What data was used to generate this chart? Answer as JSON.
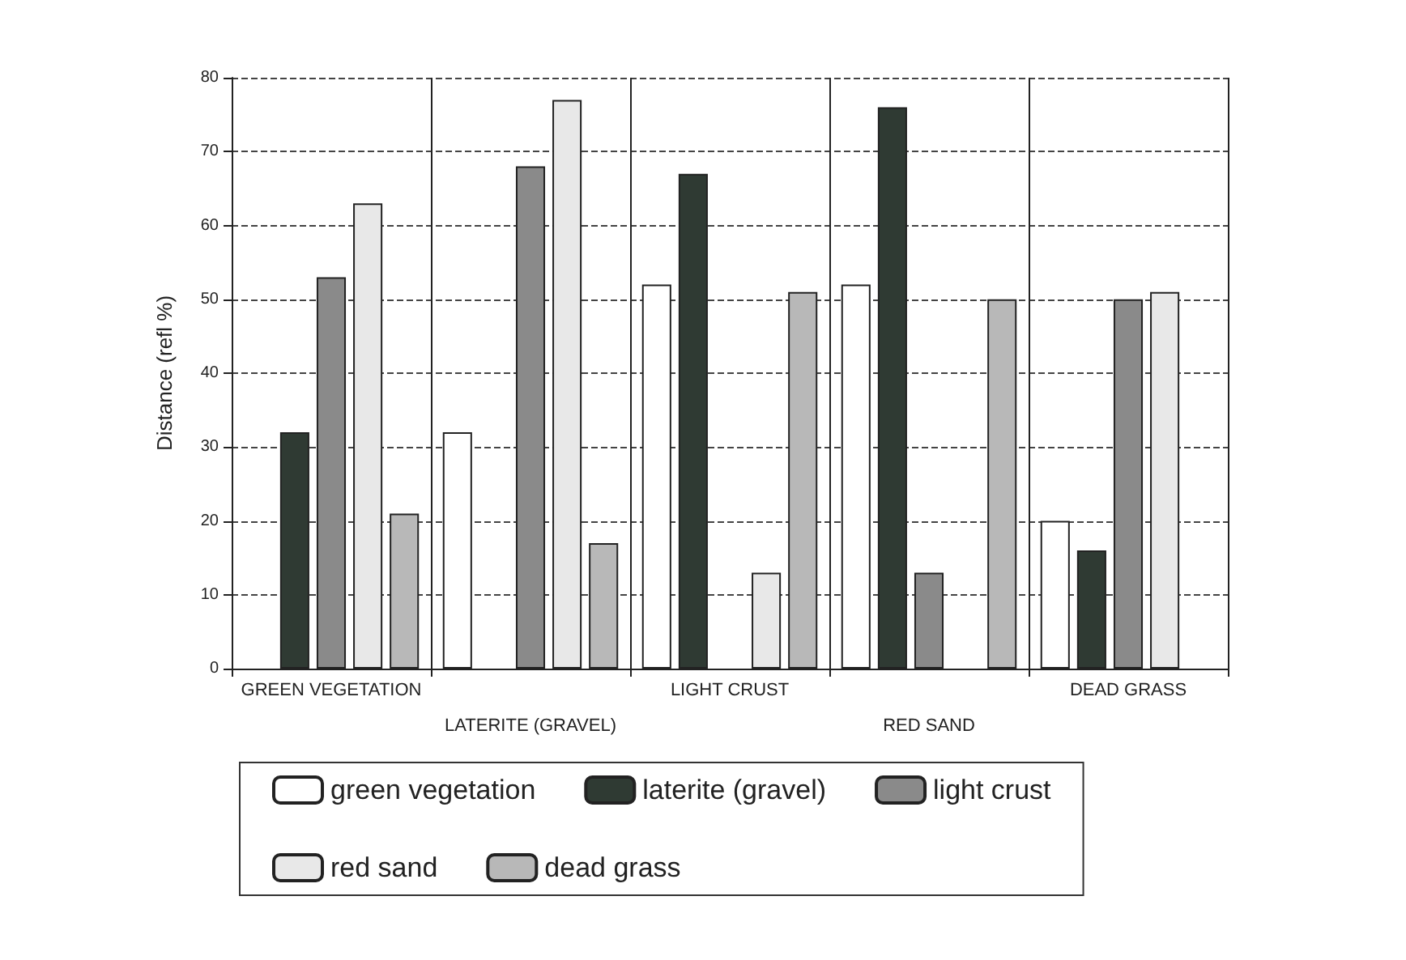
{
  "chart_data": {
    "type": "bar",
    "ylabel": "Distance (refl %)",
    "categories": [
      "GREEN VEGETATION",
      "LATERITE (GRAVEL)",
      "LIGHT CRUST",
      "RED SAND",
      "DEAD GRASS"
    ],
    "series": [
      {
        "name": "green vegetation",
        "color": "#ffffff",
        "values": [
          null,
          32,
          52,
          52,
          20
        ]
      },
      {
        "name": "laterite (gravel)",
        "color": "#2f3a33",
        "values": [
          32,
          null,
          67,
          76,
          16
        ]
      },
      {
        "name": "light crust",
        "color": "#8a8a8a",
        "values": [
          53,
          68,
          null,
          13,
          50
        ]
      },
      {
        "name": "red sand",
        "color": "#e8e8e8",
        "values": [
          63,
          77,
          13,
          null,
          51
        ]
      },
      {
        "name": "dead grass",
        "color": "#b8b8b8",
        "values": [
          21,
          17,
          51,
          50,
          null
        ]
      }
    ],
    "ylim": [
      0,
      80
    ],
    "yticks": [
      0,
      10,
      20,
      30,
      40,
      50,
      60,
      70,
      80
    ],
    "grid": "y",
    "legend": "bottom"
  }
}
